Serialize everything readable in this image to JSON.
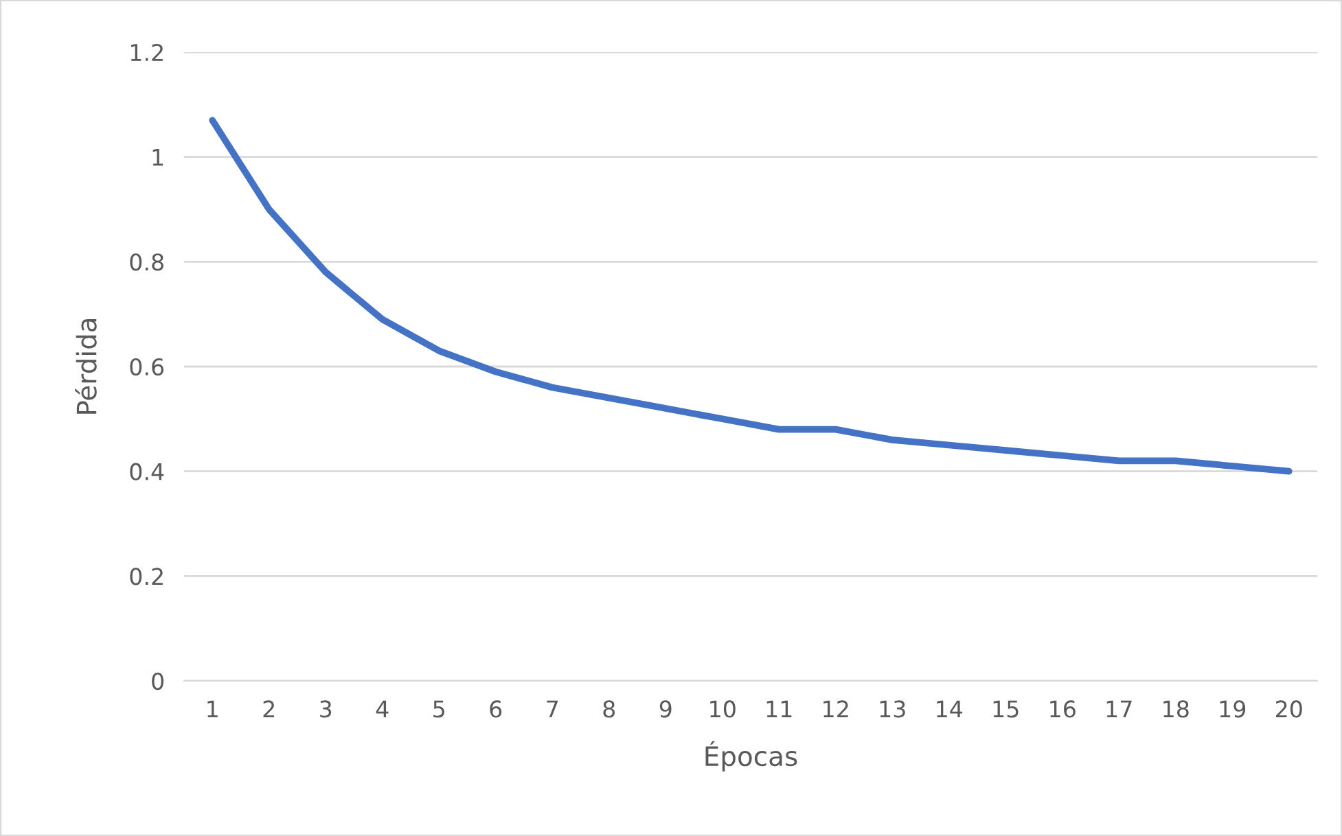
{
  "chart_data": {
    "type": "line",
    "xlabel": "Épocas",
    "ylabel": "Pérdida",
    "categories": [
      "1",
      "2",
      "3",
      "4",
      "5",
      "6",
      "7",
      "8",
      "9",
      "10",
      "11",
      "12",
      "13",
      "14",
      "15",
      "16",
      "17",
      "18",
      "19",
      "20"
    ],
    "series": [
      {
        "color": "#4472c4",
        "values": [
          1.07,
          0.9,
          0.78,
          0.69,
          0.63,
          0.59,
          0.56,
          0.54,
          0.52,
          0.5,
          0.48,
          0.48,
          0.46,
          0.45,
          0.44,
          0.43,
          0.42,
          0.42,
          0.41,
          0.4
        ]
      }
    ],
    "ylim": [
      0,
      1.2
    ],
    "yticks": [
      0,
      {
        "value": 0.2,
        "label": "0.2"
      },
      {
        "value": 0.4,
        "label": "0.4"
      },
      {
        "value": 0.6,
        "label": "0.6"
      },
      {
        "value": 0.8,
        "label": "0.8"
      },
      1,
      {
        "value": 1.2,
        "label": "1.2"
      }
    ],
    "grid": "y",
    "marker": "none",
    "line_style": "solid"
  }
}
